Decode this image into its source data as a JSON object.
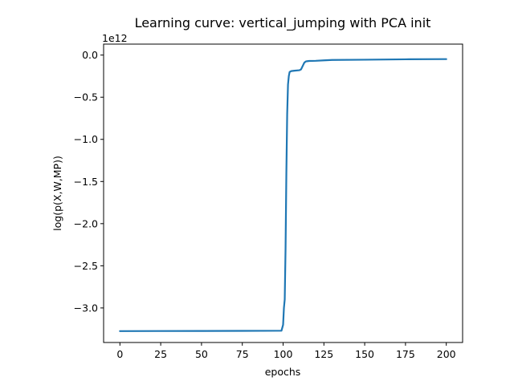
{
  "chart_data": {
    "type": "line",
    "title": "Learning curve: vertical_jumping with PCA init",
    "xlabel": "epochs",
    "ylabel": "log(p(X,W,MP))",
    "offset_text": "1e12",
    "xlim": [
      -10,
      210
    ],
    "ylim": [
      -3.41,
      0.13
    ],
    "xticks": [
      0,
      25,
      50,
      75,
      100,
      125,
      150,
      175,
      200
    ],
    "yticks": [
      0.0,
      -0.5,
      -1.0,
      -1.5,
      -2.0,
      -2.5,
      -3.0
    ],
    "ytick_labels": [
      "0.0",
      "−0.5",
      "−1.0",
      "−1.5",
      "−2.0",
      "−2.5",
      "−3.0"
    ],
    "grid": false,
    "line_color": "#1f77b4",
    "series": [
      {
        "x": [
          0,
          25,
          50,
          75,
          99,
          100,
          100.5,
          101,
          101.5,
          102,
          102.5,
          103,
          103.5,
          104,
          105,
          107,
          110,
          111,
          112,
          113,
          114,
          116,
          120,
          125,
          130,
          150,
          175,
          200
        ],
        "y": [
          -3.275,
          -3.274,
          -3.273,
          -3.272,
          -3.27,
          -3.2,
          -3.0,
          -2.9,
          -2.3,
          -1.4,
          -0.7,
          -0.35,
          -0.25,
          -0.2,
          -0.19,
          -0.185,
          -0.18,
          -0.17,
          -0.13,
          -0.09,
          -0.075,
          -0.07,
          -0.068,
          -0.063,
          -0.058,
          -0.055,
          -0.05,
          -0.048
        ]
      }
    ]
  }
}
